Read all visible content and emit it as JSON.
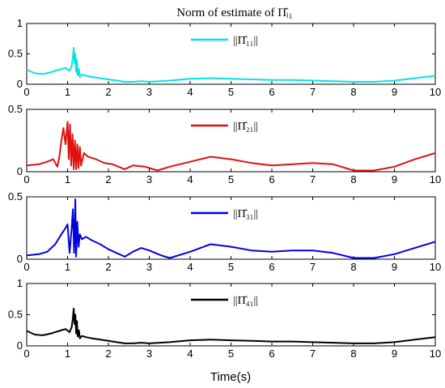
{
  "chart_data": {
    "title": "Norm of estimate of Π̂ᵢ₁",
    "xlabel": "Time(s)",
    "type": "line",
    "xlim": [
      0,
      10
    ],
    "xticks": [
      "0",
      "1",
      "2",
      "3",
      "4",
      "5",
      "6",
      "7",
      "8",
      "9",
      "10"
    ],
    "panels": [
      {
        "ylim": [
          0,
          1
        ],
        "yticks": [
          "0",
          "0.5",
          "1"
        ],
        "legend": "||Π̂₁₁||",
        "color": "#00e5e5",
        "series": {
          "name": "||Π̂₁₁||",
          "x": [
            0,
            0.2,
            0.4,
            0.6,
            0.8,
            0.95,
            1.05,
            1.1,
            1.13,
            1.15,
            1.17,
            1.19,
            1.21,
            1.23,
            1.25,
            1.28,
            1.3,
            1.35,
            1.45,
            1.6,
            1.8,
            2,
            2.2,
            2.4,
            2.6,
            2.8,
            3,
            3.5,
            4,
            4.5,
            5,
            5.5,
            6,
            6.5,
            7,
            7.5,
            8,
            8.5,
            9,
            9.5,
            10
          ],
          "y": [
            0.24,
            0.18,
            0.17,
            0.2,
            0.24,
            0.27,
            0.22,
            0.3,
            0.45,
            0.6,
            0.35,
            0.5,
            0.2,
            0.4,
            0.15,
            0.25,
            0.12,
            0.16,
            0.14,
            0.12,
            0.1,
            0.08,
            0.06,
            0.04,
            0.04,
            0.05,
            0.04,
            0.06,
            0.09,
            0.1,
            0.09,
            0.08,
            0.07,
            0.07,
            0.06,
            0.05,
            0.04,
            0.04,
            0.06,
            0.1,
            0.14
          ]
        }
      },
      {
        "ylim": [
          0,
          0.5
        ],
        "yticks": [
          "0",
          "0.5"
        ],
        "legend": "||Π̂₂₁||",
        "color": "#e01010",
        "series": {
          "name": "||Π̂₂₁||",
          "x": [
            0,
            0.3,
            0.5,
            0.65,
            0.75,
            0.8,
            0.85,
            0.9,
            0.95,
            1,
            1.03,
            1.06,
            1.09,
            1.12,
            1.15,
            1.18,
            1.21,
            1.24,
            1.27,
            1.3,
            1.33,
            1.4,
            1.5,
            1.7,
            1.9,
            2.1,
            2.4,
            2.6,
            2.9,
            3.2,
            3.5,
            4,
            4.5,
            5,
            5.5,
            6,
            6.5,
            7,
            7.5,
            8,
            8.5,
            9,
            9.5,
            10
          ],
          "y": [
            0.05,
            0.06,
            0.08,
            0.1,
            0.04,
            0.12,
            0.25,
            0.35,
            0.22,
            0.4,
            0.1,
            0.38,
            0.05,
            0.3,
            0.02,
            0.25,
            0.02,
            0.22,
            0.03,
            0.2,
            0.05,
            0.15,
            0.12,
            0.1,
            0.07,
            0.06,
            0.02,
            0.05,
            0.04,
            0.01,
            0.04,
            0.08,
            0.12,
            0.1,
            0.07,
            0.05,
            0.06,
            0.07,
            0.06,
            0.01,
            0.01,
            0.04,
            0.1,
            0.15
          ]
        }
      },
      {
        "ylim": [
          0,
          0.5
        ],
        "yticks": [
          "0",
          "0.5"
        ],
        "legend": "||Π̂₃₁||",
        "color": "#0000e0",
        "series": {
          "name": "||Π̂₃₁||",
          "x": [
            0,
            0.3,
            0.5,
            0.7,
            0.85,
            0.95,
            1,
            1.05,
            1.1,
            1.13,
            1.16,
            1.19,
            1.21,
            1.24,
            1.27,
            1.3,
            1.35,
            1.45,
            1.6,
            1.8,
            2,
            2.2,
            2.4,
            2.6,
            2.8,
            3,
            3.3,
            3.5,
            4,
            4.5,
            5,
            5.5,
            6,
            6.5,
            7,
            7.5,
            8,
            8.5,
            9,
            9.5,
            10
          ],
          "y": [
            0.03,
            0.04,
            0.06,
            0.12,
            0.2,
            0.25,
            0.28,
            0.05,
            0.25,
            0.4,
            0.05,
            0.48,
            0.02,
            0.3,
            0.1,
            0.2,
            0.16,
            0.18,
            0.15,
            0.12,
            0.08,
            0.05,
            0.02,
            0.06,
            0.09,
            0.07,
            0.03,
            0.01,
            0.06,
            0.12,
            0.1,
            0.07,
            0.06,
            0.07,
            0.07,
            0.05,
            0.01,
            0.01,
            0.04,
            0.09,
            0.14
          ]
        }
      },
      {
        "ylim": [
          0,
          1
        ],
        "yticks": [
          "0",
          "0.5",
          "1"
        ],
        "legend": "||Π̂₄₁||",
        "color": "#000000",
        "series": {
          "name": "||Π̂₄₁||",
          "x": [
            0,
            0.2,
            0.4,
            0.6,
            0.8,
            0.95,
            1.05,
            1.1,
            1.13,
            1.15,
            1.17,
            1.19,
            1.21,
            1.23,
            1.25,
            1.28,
            1.3,
            1.35,
            1.45,
            1.6,
            1.8,
            2,
            2.2,
            2.4,
            2.6,
            2.8,
            3,
            3.5,
            4,
            4.5,
            5,
            5.5,
            6,
            6.5,
            7,
            7.5,
            8,
            8.5,
            9,
            9.5,
            10
          ],
          "y": [
            0.24,
            0.18,
            0.17,
            0.2,
            0.24,
            0.27,
            0.22,
            0.3,
            0.45,
            0.6,
            0.35,
            0.5,
            0.2,
            0.4,
            0.15,
            0.25,
            0.12,
            0.16,
            0.14,
            0.12,
            0.1,
            0.08,
            0.06,
            0.04,
            0.04,
            0.05,
            0.04,
            0.06,
            0.09,
            0.1,
            0.09,
            0.08,
            0.07,
            0.07,
            0.06,
            0.05,
            0.04,
            0.04,
            0.06,
            0.1,
            0.14
          ]
        }
      }
    ]
  }
}
